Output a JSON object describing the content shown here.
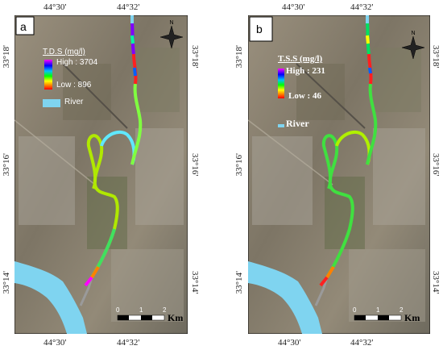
{
  "panels": [
    {
      "id": "a",
      "label": "a",
      "legend": {
        "title": "T.D.S (mg/l)",
        "high": "High : 3704",
        "low": "Low : 896",
        "river": "River"
      },
      "coords": {
        "top_left": "44°30'",
        "top_right": "44°32'",
        "bottom_left": "44°30'",
        "bottom_right": "44°32'",
        "left_upper": "33°18'",
        "left_mid": "33°16'",
        "left_lower": "33°14'",
        "right_upper": "33°18'",
        "right_mid": "33°16'",
        "right_lower": "33°14'"
      },
      "scale": {
        "t0": "0",
        "t1": "1",
        "t2": "2",
        "unit": "Km"
      }
    },
    {
      "id": "b",
      "label": "b",
      "legend": {
        "title": "T.S.S (mg/l)",
        "high": "High : 231",
        "low": "Low : 46",
        "river": "River"
      },
      "coords": {
        "top_left": "44°30'",
        "top_right": "44°32'",
        "bottom_left": "44°30'",
        "bottom_right": "44°32'",
        "left_upper": "33°18'",
        "left_mid": "33°16'",
        "left_lower": "33°14'",
        "right_upper": "33°18'",
        "right_mid": "33°16'",
        "right_lower": "33°14'"
      },
      "scale": {
        "t0": "0",
        "t1": "1",
        "t2": "2",
        "unit": "Km"
      }
    }
  ],
  "colors": {
    "river_base": "#7fd4f0",
    "ramp": [
      "#ff00ff",
      "#0000ff",
      "#00c0ff",
      "#00ff00",
      "#ffff00",
      "#ff8000",
      "#ff0000"
    ],
    "map_bg": "#8a8070"
  },
  "icons": [
    "north-arrow-icon"
  ]
}
